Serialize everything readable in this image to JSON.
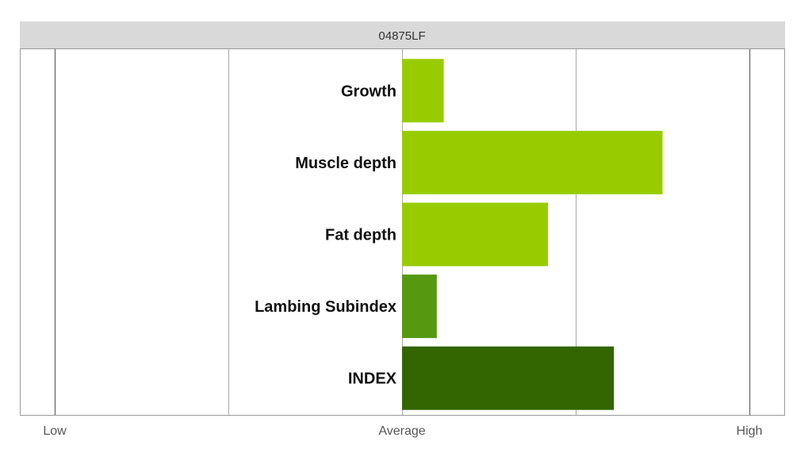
{
  "chart_data": {
    "type": "bar",
    "orientation": "horizontal",
    "title": "04875LF",
    "categories": [
      "Growth",
      "Muscle depth",
      "Fat depth",
      "Lambing Subindex",
      "INDEX"
    ],
    "values": [
      0.12,
      0.75,
      0.42,
      0.1,
      0.61
    ],
    "value_scale": "relative to average, -1 = Low, 0 = Average, 1 = High",
    "xlim": [
      -1,
      1
    ],
    "x_ticks": [
      {
        "value": -1,
        "label": "Low"
      },
      {
        "value": 0,
        "label": "Average"
      },
      {
        "value": 1,
        "label": "High"
      }
    ],
    "gridlines": [
      -1,
      -0.5,
      0,
      0.5,
      1
    ],
    "bar_colors": [
      "#99cc00",
      "#99cc00",
      "#99cc00",
      "#559911",
      "#336600"
    ],
    "header_background": "#d9d9d9",
    "grid": true,
    "legend": "none"
  }
}
